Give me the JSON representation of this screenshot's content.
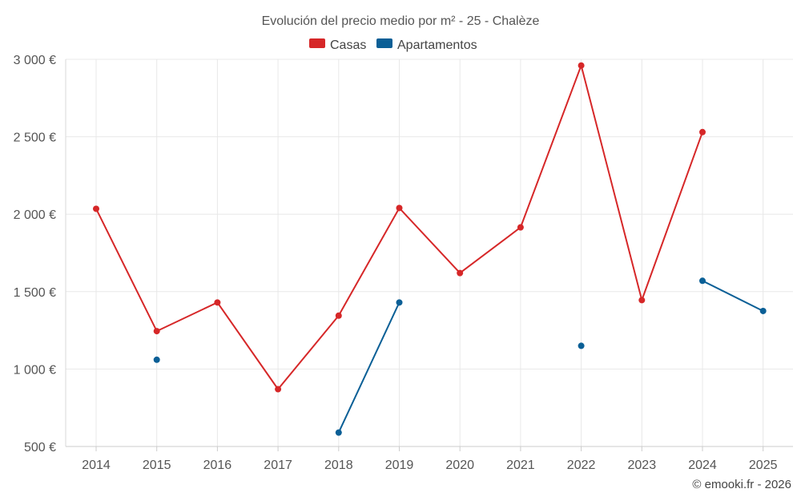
{
  "chart_data": {
    "type": "line",
    "title": "Evolución del precio medio por m² - 25 - Chalèze",
    "categories": [
      "2014",
      "2015",
      "2016",
      "2017",
      "2018",
      "2019",
      "2020",
      "2021",
      "2022",
      "2023",
      "2024",
      "2025"
    ],
    "y_ticks": [
      "500 €",
      "1 000 €",
      "1 500 €",
      "2 000 €",
      "2 500 €",
      "3 000 €"
    ],
    "y_tick_values": [
      500,
      1000,
      1500,
      2000,
      2500,
      3000
    ],
    "ylim": [
      500,
      3000
    ],
    "grid": true,
    "legend_position": "top-center",
    "series": [
      {
        "name": "Casas",
        "color": "#d62728",
        "values": [
          2035,
          1245,
          1430,
          870,
          1345,
          2040,
          1620,
          1915,
          2960,
          1445,
          2530,
          null
        ]
      },
      {
        "name": "Apartamentos",
        "color": "#0a5f96",
        "values": [
          null,
          1060,
          null,
          null,
          590,
          1430,
          null,
          null,
          1150,
          null,
          1570,
          1375
        ]
      }
    ],
    "credit": "© emooki.fr - 2026"
  }
}
